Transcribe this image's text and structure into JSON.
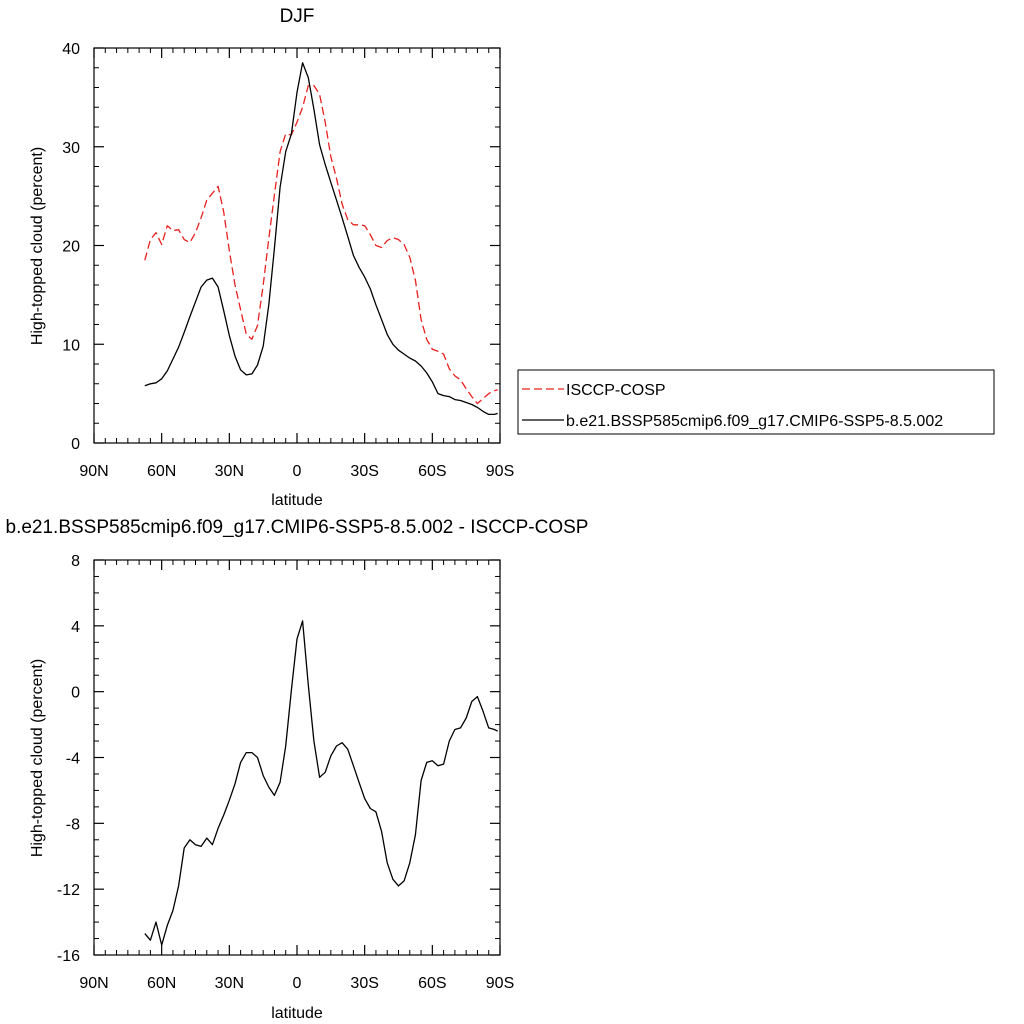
{
  "colors": {
    "background": "#ffffff",
    "axis": "#000000",
    "model_line": "#000000",
    "obs_line": "#e8201e",
    "legend_border": "#000000"
  },
  "legend": {
    "placement": "right of top panel",
    "entries": [
      {
        "label": "ISCCP-COSP",
        "color": "#e8201e",
        "dash": "dashed"
      },
      {
        "label": "b.e21.BSSP585cmip6.f09_g17.CMIP6-SSP5-8.5.002",
        "color": "#000000",
        "dash": "solid"
      }
    ]
  },
  "chart_data": [
    {
      "type": "line",
      "title": "DJF",
      "xlabel": "latitude",
      "ylabel": "High-topped cloud (percent)",
      "xlim": [
        90,
        -90
      ],
      "ylim": [
        0,
        40
      ],
      "x_ticks": [
        {
          "value": 90,
          "label": "90N"
        },
        {
          "value": 60,
          "label": "60N"
        },
        {
          "value": 30,
          "label": "30N"
        },
        {
          "value": 0,
          "label": "0"
        },
        {
          "value": -30,
          "label": "30S"
        },
        {
          "value": -60,
          "label": "60S"
        },
        {
          "value": -90,
          "label": "90S"
        }
      ],
      "y_ticks": [
        {
          "value": 0,
          "label": "0"
        },
        {
          "value": 10,
          "label": "10"
        },
        {
          "value": 20,
          "label": "20"
        },
        {
          "value": 30,
          "label": "30"
        },
        {
          "value": 40,
          "label": "40"
        }
      ],
      "grid": false,
      "series": [
        {
          "name": "ISCCP-COSP",
          "color": "#e8201e",
          "dash": "dashed",
          "x": [
            67.5,
            65,
            62.5,
            60,
            57.5,
            55,
            52.5,
            50,
            47.5,
            45,
            42.5,
            40,
            37.5,
            35,
            32.5,
            30,
            27.5,
            25,
            22.5,
            20,
            17.5,
            15,
            12.5,
            10,
            7.5,
            5,
            2.5,
            0,
            -2.5,
            -5,
            -7.5,
            -10,
            -12.5,
            -15,
            -17.5,
            -20,
            -22.5,
            -25,
            -27.5,
            -30,
            -32.5,
            -35,
            -37.5,
            -40,
            -42.5,
            -45,
            -47.5,
            -50,
            -52.5,
            -55,
            -57.5,
            -60,
            -62.5,
            -65,
            -67.5,
            -70,
            -72.5,
            -75,
            -77.5,
            -80,
            -82.5,
            -85,
            -87.5,
            -89
          ],
          "y": [
            18.5,
            20.6,
            21.3,
            20.1,
            22.0,
            21.5,
            21.6,
            20.6,
            20.3,
            21.3,
            22.8,
            24.6,
            25.3,
            26.0,
            23.4,
            19.5,
            16.0,
            13.5,
            11.0,
            10.5,
            11.9,
            16.0,
            20.7,
            25.1,
            29.5,
            31.3,
            31.2,
            32.5,
            34.0,
            36.2,
            36.2,
            35.3,
            32.5,
            29.0,
            26.8,
            24.2,
            22.6,
            22.1,
            22.1,
            22.0,
            21.1,
            20.0,
            19.8,
            20.5,
            20.8,
            20.6,
            20.1,
            18.8,
            16.5,
            12.5,
            10.5,
            9.5,
            9.3,
            9.0,
            7.5,
            6.8,
            6.4,
            5.5,
            4.7,
            4.0,
            4.5,
            5.0,
            5.3,
            5.4
          ]
        },
        {
          "name": "b.e21.BSSP585cmip6.f09_g17.CMIP6-SSP5-8.5.002",
          "color": "#000000",
          "dash": "solid",
          "x": [
            67.5,
            65,
            62.5,
            60,
            57.5,
            55,
            52.5,
            50,
            47.5,
            45,
            42.5,
            40,
            37.5,
            35,
            32.5,
            30,
            27.5,
            25,
            22.5,
            20,
            17.5,
            15,
            12.5,
            10,
            7.5,
            5,
            2.5,
            0,
            -2.5,
            -5,
            -7.5,
            -10,
            -12.5,
            -15,
            -17.5,
            -20,
            -22.5,
            -25,
            -27.5,
            -30,
            -32.5,
            -35,
            -37.5,
            -40,
            -42.5,
            -45,
            -47.5,
            -50,
            -52.5,
            -55,
            -57.5,
            -60,
            -62.5,
            -65,
            -67.5,
            -70,
            -72.5,
            -75,
            -77.5,
            -80,
            -82.5,
            -85,
            -87.5,
            -89
          ],
          "y": [
            5.8,
            6.0,
            6.1,
            6.5,
            7.3,
            8.5,
            9.7,
            11.2,
            12.8,
            14.3,
            15.8,
            16.5,
            16.7,
            15.8,
            13.4,
            10.9,
            8.8,
            7.4,
            6.9,
            7.0,
            7.9,
            9.8,
            14.0,
            19.7,
            25.9,
            29.5,
            31.3,
            35.5,
            38.5,
            37.0,
            33.8,
            30.2,
            28.2,
            26.4,
            24.6,
            22.8,
            20.9,
            19.0,
            17.8,
            16.8,
            15.6,
            14.0,
            12.5,
            11.0,
            10.0,
            9.4,
            9.0,
            8.6,
            8.3,
            7.8,
            7.1,
            6.2,
            5.0,
            4.8,
            4.7,
            4.4,
            4.3,
            4.1,
            3.9,
            3.6,
            3.2,
            2.9,
            2.9,
            3.0
          ]
        }
      ]
    },
    {
      "type": "line",
      "title": "b.e21.BSSP585cmip6.f09_g17.CMIP6-SSP5-8.5.002 - ISCCP-COSP",
      "xlabel": "latitude",
      "ylabel": "High-topped cloud (percent)",
      "xlim": [
        90,
        -90
      ],
      "ylim": [
        -16,
        8
      ],
      "x_ticks": [
        {
          "value": 90,
          "label": "90N"
        },
        {
          "value": 60,
          "label": "60N"
        },
        {
          "value": 30,
          "label": "30N"
        },
        {
          "value": 0,
          "label": "0"
        },
        {
          "value": -30,
          "label": "30S"
        },
        {
          "value": -60,
          "label": "60S"
        },
        {
          "value": -90,
          "label": "90S"
        }
      ],
      "y_ticks": [
        {
          "value": -16,
          "label": "-16"
        },
        {
          "value": -12,
          "label": "-12"
        },
        {
          "value": -8,
          "label": "-8"
        },
        {
          "value": -4,
          "label": "-4"
        },
        {
          "value": 0,
          "label": "0"
        },
        {
          "value": 4,
          "label": "4"
        },
        {
          "value": 8,
          "label": "8"
        }
      ],
      "grid": false,
      "series": [
        {
          "name": "",
          "color": "#000000",
          "dash": "solid",
          "x": [
            67.5,
            65,
            62.5,
            60,
            57.5,
            55,
            52.5,
            50,
            47.5,
            45,
            42.5,
            40,
            37.5,
            35,
            32.5,
            30,
            27.5,
            25,
            22.5,
            20,
            17.5,
            15,
            12.5,
            10,
            7.5,
            5,
            2.5,
            0,
            -2.5,
            -5,
            -7.5,
            -10,
            -12.5,
            -15,
            -17.5,
            -20,
            -22.5,
            -25,
            -27.5,
            -30,
            -32.5,
            -35,
            -37.5,
            -40,
            -42.5,
            -45,
            -47.5,
            -50,
            -52.5,
            -55,
            -57.5,
            -60,
            -62.5,
            -65,
            -67.5,
            -70,
            -72.5,
            -75,
            -77.5,
            -80,
            -82.5,
            -85,
            -87.5,
            -89
          ],
          "y": [
            -14.7,
            -15.1,
            -14.0,
            -15.4,
            -14.2,
            -13.3,
            -11.8,
            -9.5,
            -9.0,
            -9.3,
            -9.4,
            -8.9,
            -9.3,
            -8.3,
            -7.5,
            -6.6,
            -5.6,
            -4.3,
            -3.7,
            -3.7,
            -4.0,
            -5.1,
            -5.8,
            -6.3,
            -5.5,
            -3.3,
            0.1,
            3.2,
            4.3,
            0.4,
            -3.0,
            -5.2,
            -4.9,
            -3.9,
            -3.3,
            -3.1,
            -3.5,
            -4.5,
            -5.5,
            -6.5,
            -7.1,
            -7.3,
            -8.5,
            -10.4,
            -11.4,
            -11.8,
            -11.5,
            -10.4,
            -8.7,
            -5.4,
            -4.3,
            -4.2,
            -4.5,
            -4.4,
            -3.0,
            -2.3,
            -2.2,
            -1.6,
            -0.6,
            -0.3,
            -1.2,
            -2.2,
            -2.3,
            -2.4
          ]
        }
      ]
    }
  ]
}
